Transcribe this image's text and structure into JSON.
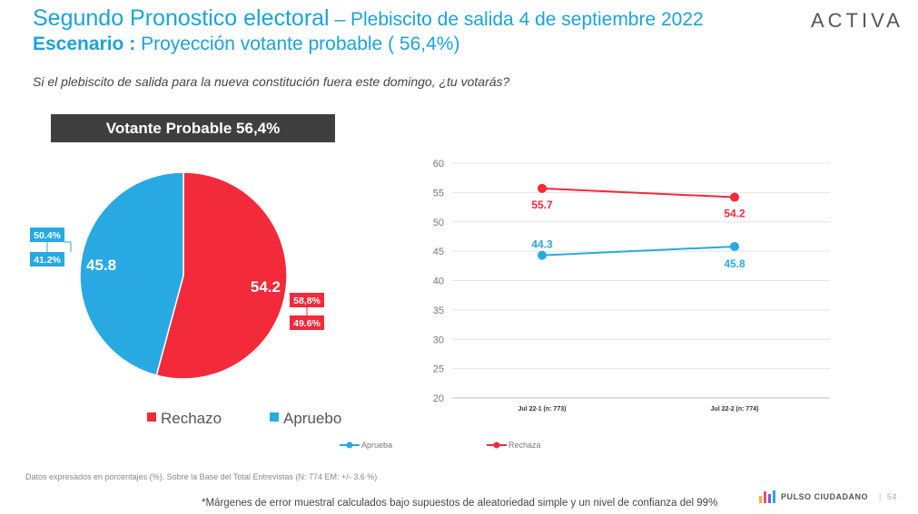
{
  "header": {
    "title_main": "Segundo Pronostico electoral",
    "title_dash": " – ",
    "title_sub": "Plebiscito de salida 4 de septiembre 2022",
    "scenario_label": "Escenario : ",
    "scenario_value": "Proyección votante probable ( 56,4%)",
    "logo_text": "ACTIVA"
  },
  "question": "Si el plebiscito de salida para la nueva constitución fuera este domingo, ¿tu votarás?",
  "banner": "Votante Probable 56,4%",
  "footer": {
    "note": "Datos expresados en porcentajes (%). Sobre la Base del Total Entrevistas (N: 774  EM: +/- 3.6 %)",
    "margin_note": "*Márgenes de error muestral calculados bajo supuestos de aleatoriedad simple y un nivel de confianza del 99%",
    "brand": "PULSO CIUDADANO",
    "page_separator": "|",
    "page_number": "54"
  },
  "colors": {
    "rechazo": "#f22a3a",
    "apruebo": "#29a9e1",
    "accent": "#1aa3dc",
    "banner_bg": "#3f3f3f"
  },
  "chart_data": [
    {
      "type": "pie",
      "title": "Votante Probable 56,4%",
      "slices": [
        {
          "name": "Rechazo",
          "value": 54.2,
          "label": "54.2",
          "range_upper": "58,8%",
          "range_lower": "49.6%",
          "color": "#f22a3a"
        },
        {
          "name": "Apruebo",
          "value": 45.8,
          "label": "45.8",
          "range_upper": "50.4%",
          "range_lower": "41.2%",
          "color": "#29a9e1"
        }
      ],
      "legend": [
        "Rechazo",
        "Apruebo"
      ],
      "legend_position": "bottom"
    },
    {
      "type": "line",
      "categories": [
        "Jul 22-1 (n: 773)",
        "Jul 22-2 (n: 774)"
      ],
      "series": [
        {
          "name": "Rechaza",
          "values": [
            55.7,
            54.2
          ],
          "color": "#f22a3a"
        },
        {
          "name": "Aprueba",
          "values": [
            44.3,
            45.8
          ],
          "color": "#29a9e1"
        }
      ],
      "ylim": [
        20,
        60
      ],
      "yticks": [
        "20",
        "25",
        "30",
        "35",
        "40",
        "45",
        "50",
        "55",
        "60"
      ],
      "grid": true,
      "legend": [
        "Aprueba",
        "Rechaza"
      ],
      "legend_position": "bottom"
    }
  ]
}
